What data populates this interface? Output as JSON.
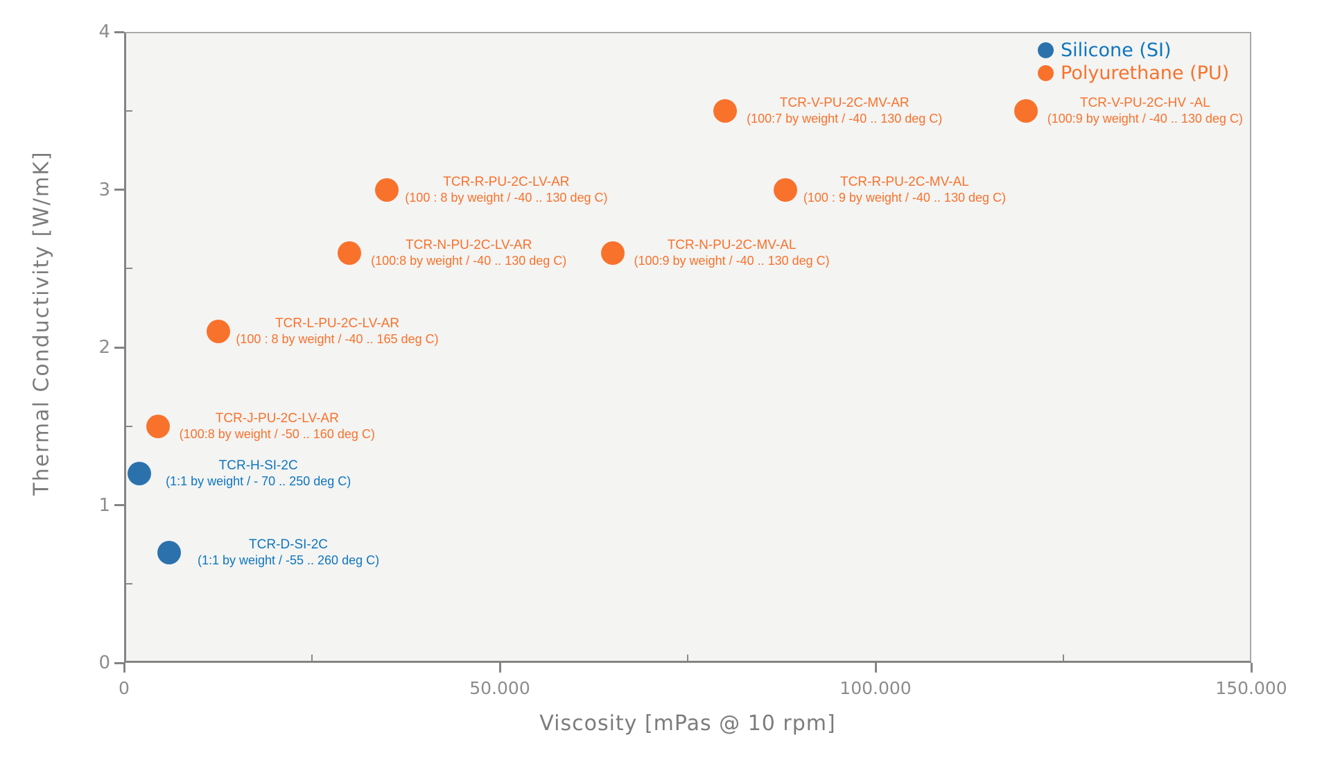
{
  "chart_data": {
    "type": "scatter",
    "title": "",
    "xlabel": "Viscosity [mPas @ 10 rpm]",
    "ylabel": "Thermal Conductivity [W/mK]",
    "xlim": [
      0,
      150000
    ],
    "ylim": [
      0,
      4
    ],
    "grid": false,
    "plot_background": "#f4f4f3",
    "x_ticks": [
      {
        "v": 0,
        "label": "0"
      },
      {
        "v": 50000,
        "label": "50.000"
      },
      {
        "v": 100000,
        "label": "100.000"
      },
      {
        "v": 150000,
        "label": "150.000"
      }
    ],
    "y_ticks": [
      {
        "v": 0,
        "label": "0"
      },
      {
        "v": 1,
        "label": "1"
      },
      {
        "v": 2,
        "label": "2"
      },
      {
        "v": 3,
        "label": "3"
      },
      {
        "v": 4,
        "label": "4"
      }
    ],
    "x_minor_ticks": [
      25000,
      75000,
      125000
    ],
    "y_minor_ticks": [
      0.5,
      1.5,
      2.5,
      3.5
    ],
    "legend": {
      "position": "top-right",
      "entries": [
        {
          "name": "Silicone (SI)",
          "dot_color": "#2b72ad",
          "text_color": "#0e76be"
        },
        {
          "name": "Polyurethane (PU)",
          "dot_color": "#f8722c",
          "text_color": "#f8722c"
        }
      ]
    },
    "series": [
      {
        "name": "Silicone (SI)",
        "dot_color": "#2b72ad",
        "text_color": "#0e76be",
        "points": [
          {
            "x": 2000,
            "y": 1.2,
            "label": "TCR-H-SI-2C",
            "sublabel": "(1:1 by weight / - 70 .. 250 deg C)"
          },
          {
            "x": 6000,
            "y": 0.7,
            "label": "TCR-D-SI-2C",
            "sublabel": "(1:1 by weight / -55 .. 260 deg C)"
          }
        ]
      },
      {
        "name": "Polyurethane (PU)",
        "dot_color": "#f8722c",
        "text_color": "#f8722c",
        "points": [
          {
            "x": 4500,
            "y": 1.5,
            "label": "TCR-J-PU-2C-LV-AR",
            "sublabel": "(100:8 by weight / -50 .. 160 deg C)"
          },
          {
            "x": 12500,
            "y": 2.1,
            "label": "TCR-L-PU-2C-LV-AR",
            "sublabel": "(100 : 8 by weight / -40 .. 165 deg C)"
          },
          {
            "x": 30000,
            "y": 2.6,
            "label": "TCR-N-PU-2C-LV-AR",
            "sublabel": "(100:8 by weight / -40 .. 130 deg C)"
          },
          {
            "x": 65000,
            "y": 2.6,
            "label": "TCR-N-PU-2C-MV-AL",
            "sublabel": "(100:9 by weight / -40 .. 130 deg C)"
          },
          {
            "x": 35000,
            "y": 3.0,
            "label": "TCR-R-PU-2C-LV-AR",
            "sublabel": "(100 : 8 by weight / -40 .. 130 deg C)"
          },
          {
            "x": 88000,
            "y": 3.0,
            "label": "TCR-R-PU-2C-MV-AL",
            "sublabel": "(100 : 9 by weight / -40 .. 130 deg C)"
          },
          {
            "x": 80000,
            "y": 3.5,
            "label": "TCR-V-PU-2C-MV-AR",
            "sublabel": "(100:7 by weight / -40 .. 130 deg C)"
          },
          {
            "x": 120000,
            "y": 3.5,
            "label": "TCR-V-PU-2C-HV -AL",
            "sublabel": "(100:9 by weight / -40 .. 130 deg C)"
          }
        ]
      }
    ]
  }
}
